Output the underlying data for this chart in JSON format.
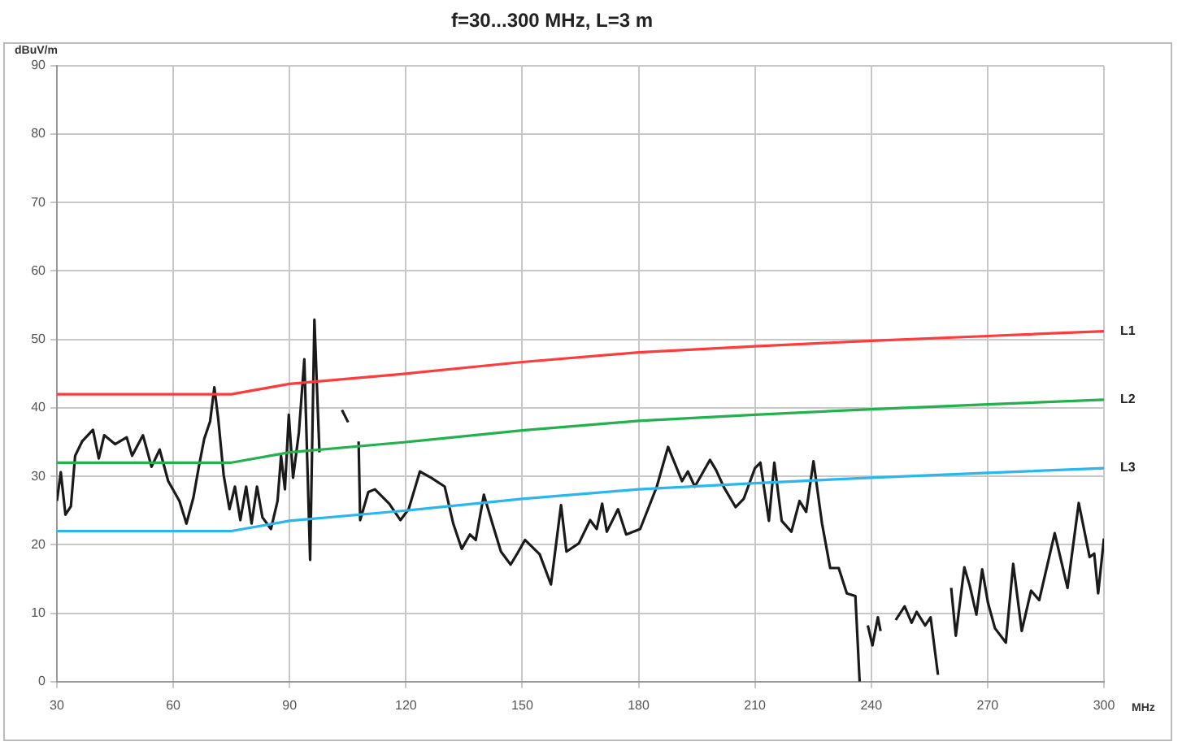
{
  "chart_data": {
    "type": "line",
    "title": "f=30...300 MHz, L=3 m",
    "xlabel": "MHz",
    "ylabel": "dBuV/m",
    "xlim": [
      30,
      300
    ],
    "xticks": [
      30,
      60,
      90,
      120,
      150,
      180,
      210,
      240,
      270,
      300
    ],
    "ylim": [
      0,
      90
    ],
    "yticks": [
      0,
      10,
      20,
      30,
      40,
      50,
      60,
      70,
      80,
      90
    ],
    "grid": true,
    "legend": false,
    "marker": "none",
    "line_style": "solid",
    "series": [
      {
        "name": "L1",
        "color": "#ff3b3b",
        "x": [
          30,
          75,
          90,
          120,
          150,
          180,
          210,
          240,
          270,
          300
        ],
        "values": [
          42,
          42,
          43.5,
          45,
          46.7,
          48.1,
          49,
          49.8,
          50.5,
          51.2
        ]
      },
      {
        "name": "L2",
        "color": "#22b14c",
        "x": [
          30,
          75,
          90,
          120,
          150,
          180,
          210,
          240,
          270,
          300
        ],
        "values": [
          32,
          32,
          33.5,
          35,
          36.7,
          38.1,
          39,
          39.8,
          40.5,
          41.2
        ]
      },
      {
        "name": "L3",
        "color": "#2ab6ef",
        "x": [
          30,
          75,
          90,
          120,
          150,
          180,
          210,
          240,
          270,
          300
        ],
        "values": [
          22,
          22,
          23.5,
          25,
          26.7,
          28.1,
          29,
          29.8,
          30.5,
          31.2
        ]
      },
      {
        "color": "#1a1a1a",
        "x": [
          30,
          31,
          32.2,
          33.6,
          34.7,
          36.5,
          39.3,
          40.8,
          42.2,
          45,
          48,
          49.4,
          52.2,
          54.4,
          56.5,
          58.7,
          61.6,
          63.4,
          65.2,
          66.6,
          68,
          69.5,
          70.6,
          71.6,
          73,
          74.5,
          75.9,
          77.3,
          78.8,
          80.2,
          81.6,
          83,
          85.2,
          86.9,
          87.8,
          88.8,
          89.8,
          90.9,
          92.4,
          93.8,
          95.3,
          96.4,
          97.7,
          100,
          103.5,
          105.1,
          106.5,
          107.8,
          108.2,
          110.3,
          112,
          115.7,
          118.6,
          120.7,
          123.6,
          126.5,
          130,
          132.2,
          134.4,
          136.5,
          138,
          140.1,
          142.3,
          144.5,
          147,
          148.8,
          150.7,
          154.5,
          157.4,
          160,
          161.4,
          164.6,
          167.5,
          169.2,
          170.6,
          171.8,
          174.7,
          176.8,
          180.4,
          184.7,
          187.6,
          191.2,
          192.7,
          194.5,
          198.4,
          200,
          202,
          205,
          207.1,
          210,
          211.4,
          213.6,
          215,
          216.9,
          219.4,
          221.5,
          223.2,
          225.1,
          227.3,
          229.4,
          231.6,
          233.7,
          235.9,
          237,
          238,
          239.1,
          240.3,
          241.7,
          242.4,
          244,
          246.3,
          248.6,
          250.4,
          251.7,
          253.9,
          255.3,
          257.2,
          259,
          260.6,
          261.8,
          264,
          265.4,
          267.1,
          268.6,
          270.1,
          271.9,
          274.7,
          276.6,
          278.8,
          281.2,
          283.3,
          287.3,
          290.6,
          293.5,
          296.3,
          297.5,
          298.5,
          300
        ],
        "values": [
          26.4,
          30.6,
          24.4,
          25.6,
          33,
          35.1,
          36.8,
          32.6,
          36,
          34.7,
          35.7,
          33,
          36,
          31.4,
          33.9,
          29.3,
          26.4,
          23.1,
          26.9,
          31.4,
          35.5,
          38,
          43,
          38.4,
          30.2,
          25.2,
          28.5,
          23.6,
          28.5,
          23.1,
          28.5,
          24,
          22.3,
          26.4,
          33,
          28.1,
          39,
          29.8,
          36.4,
          47.1,
          17.8,
          52.9,
          33.5,
          null,
          39.7,
          37.9,
          null,
          35.1,
          23.6,
          27.7,
          28.1,
          26,
          23.6,
          25.2,
          30.7,
          29.8,
          28.5,
          23.1,
          19.4,
          21.5,
          20.7,
          27.3,
          23.1,
          19,
          17.1,
          18.8,
          20.7,
          18.6,
          14.2,
          25.8,
          19,
          20.2,
          23.6,
          22.3,
          26,
          21.9,
          25.2,
          21.5,
          22.3,
          28.5,
          34.3,
          29.3,
          30.7,
          28.5,
          32.4,
          30.9,
          28.4,
          25.5,
          26.7,
          31.2,
          32,
          23.5,
          32,
          23.5,
          21.9,
          26.4,
          24.8,
          32.2,
          23.1,
          16.6,
          16.6,
          12.9,
          12.5,
          0,
          null,
          8.2,
          5.3,
          9.4,
          7.4,
          null,
          9,
          11,
          8.6,
          10.2,
          8.2,
          9.4,
          1,
          null,
          13.7,
          6.7,
          16.7,
          14,
          9.8,
          16.4,
          11.5,
          7.8,
          5.7,
          17.2,
          7.4,
          13.3,
          11.9,
          21.7,
          13.7,
          26.1,
          18.2,
          18.7,
          12.9,
          20.9
        ]
      }
    ]
  }
}
